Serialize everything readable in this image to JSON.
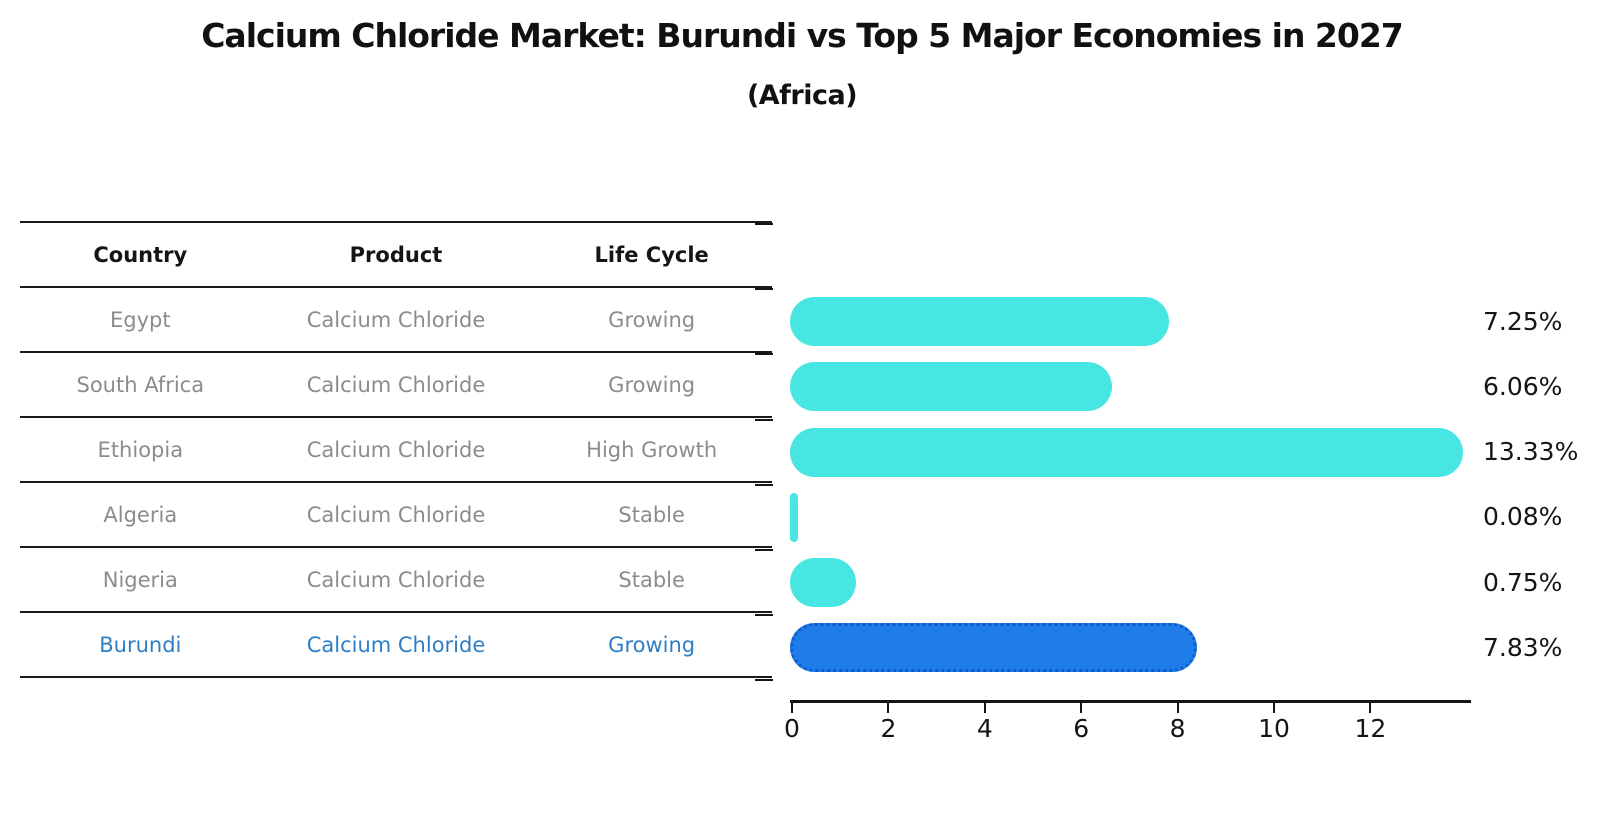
{
  "header": {
    "title": "Calcium Chloride Market: Burundi vs Top 5 Major Economies in 2027",
    "subtitle": "(Africa)"
  },
  "table": {
    "columns": [
      "Country",
      "Product",
      "Life Cycle"
    ],
    "rows": [
      {
        "country": "Egypt",
        "product": "Calcium Chloride",
        "life_cycle": "Growing",
        "highlight": false
      },
      {
        "country": "South Africa",
        "product": "Calcium Chloride",
        "life_cycle": "Growing",
        "highlight": false
      },
      {
        "country": "Ethiopia",
        "product": "Calcium Chloride",
        "life_cycle": "High Growth",
        "highlight": false
      },
      {
        "country": "Algeria",
        "product": "Calcium Chloride",
        "life_cycle": "Stable",
        "highlight": false
      },
      {
        "country": "Nigeria",
        "product": "Calcium Chloride",
        "life_cycle": "Stable",
        "highlight": false
      },
      {
        "country": "Burundi",
        "product": "Calcium Chloride",
        "life_cycle": "Growing",
        "highlight": true
      }
    ]
  },
  "chart_data": {
    "type": "bar",
    "orientation": "horizontal",
    "categories": [
      "Egypt",
      "South Africa",
      "Ethiopia",
      "Algeria",
      "Nigeria",
      "Burundi"
    ],
    "values": [
      7.25,
      6.06,
      13.33,
      0.08,
      0.75,
      7.83
    ],
    "value_labels": [
      "7.25%",
      "6.06%",
      "13.33%",
      "0.08%",
      "0.75%",
      "7.83%"
    ],
    "x_ticks": [
      0,
      2,
      4,
      6,
      8,
      10,
      12
    ],
    "xlim": [
      0,
      14.1
    ],
    "grid": false,
    "legend": "none",
    "highlight_index": 5,
    "bar_color": "#47E6E3",
    "highlight_bar_color": "#1E7DE8",
    "highlight_text_color": "#2E7EC6",
    "axis_color": "#151515"
  }
}
